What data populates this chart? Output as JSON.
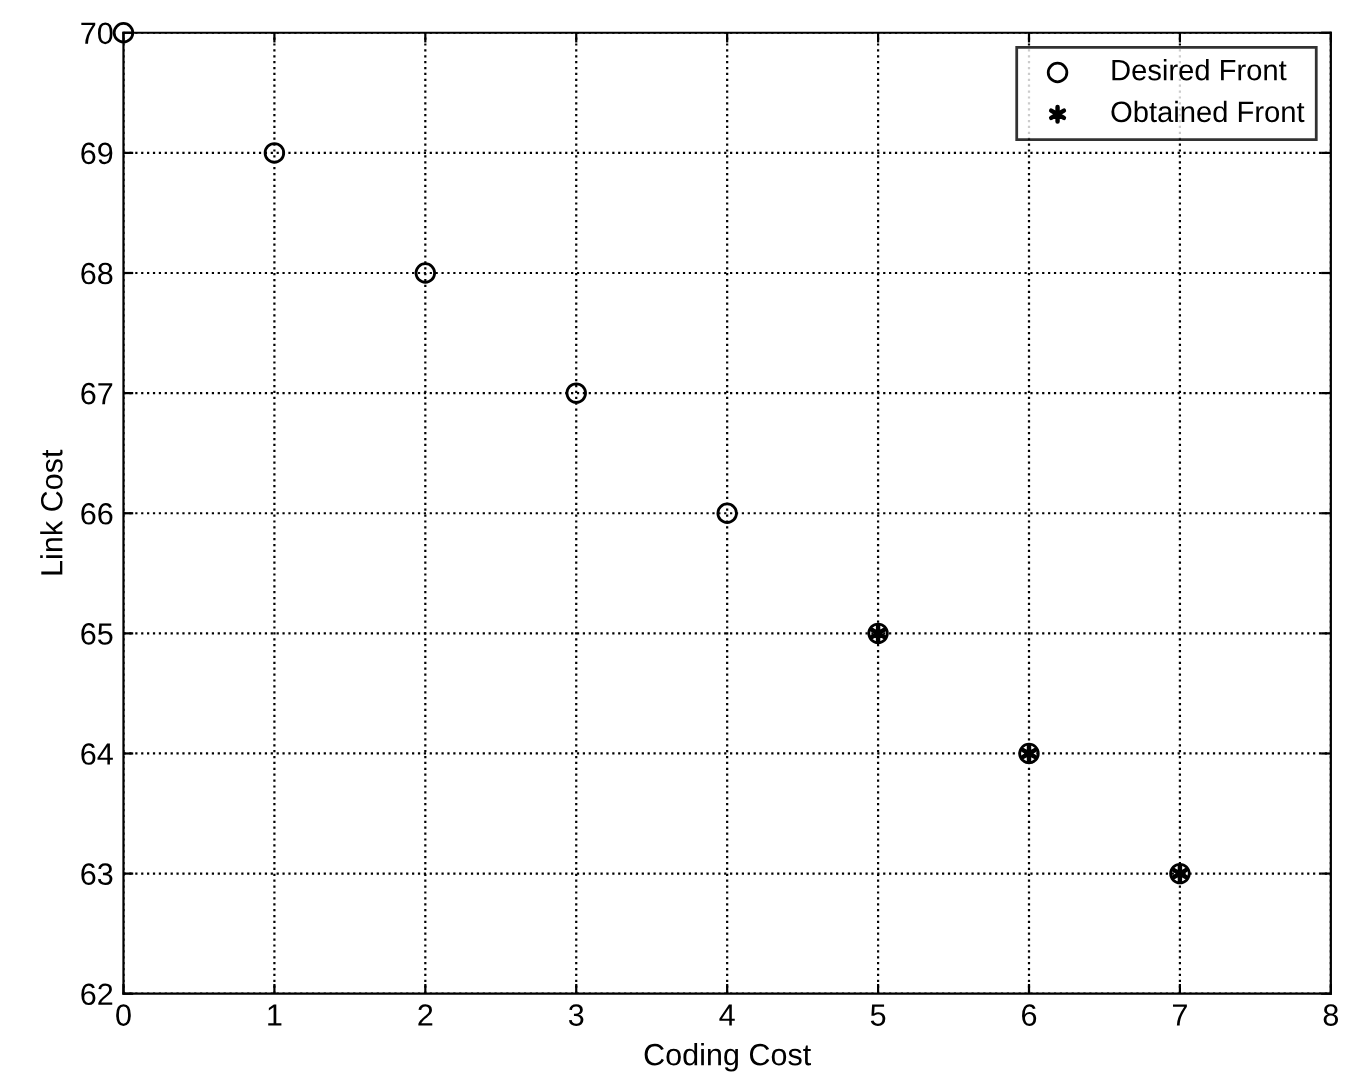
{
  "chart_data": {
    "type": "scatter",
    "xlabel": "Coding Cost",
    "ylabel": "Link Cost",
    "series": [
      {
        "name": "Desired Front",
        "color": "#000000",
        "x": [
          0,
          1,
          2,
          3,
          4,
          5,
          6,
          7
        ],
        "values": [
          70,
          69,
          68,
          67,
          66,
          65,
          64,
          63
        ],
        "marker": "circle"
      },
      {
        "name": "Obtained Front",
        "color": "#000000",
        "x": [
          5,
          6,
          7
        ],
        "values": [
          65,
          64,
          63
        ],
        "marker": "cross"
      }
    ],
    "xlim": [
      0,
      8
    ],
    "xticks": [
      0,
      1,
      2,
      3,
      4,
      5,
      6,
      7,
      8
    ],
    "ylim": [
      62,
      70
    ],
    "yticks": [
      62,
      63,
      64,
      65,
      66,
      67,
      68,
      69,
      70
    ],
    "grid": true,
    "legend": "top right"
  }
}
